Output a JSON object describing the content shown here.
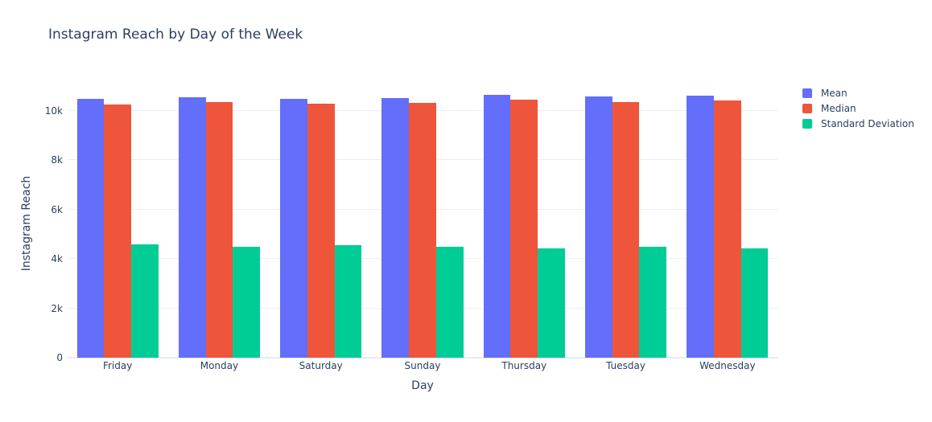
{
  "title": "Instagram Reach by Day of the Week",
  "colors": {
    "background": "#ffffff",
    "grid": "#ebf0f8",
    "zero_line": "#e5ecf6",
    "text": "#2a3f5f",
    "mean": "#636EFA",
    "median": "#EF553B",
    "std_dev": "#00CC96"
  },
  "chart_data": {
    "type": "bar",
    "title": "Instagram Reach by Day of the Week",
    "xlabel": "Day",
    "ylabel": "Instagram Reach",
    "categories": [
      "Friday",
      "Monday",
      "Saturday",
      "Sunday",
      "Thursday",
      "Tuesday",
      "Wednesday"
    ],
    "series": [
      {
        "name": "Mean",
        "color": "#636EFA",
        "values": [
          10500,
          10550,
          10490,
          10520,
          10650,
          10590,
          10620
        ]
      },
      {
        "name": "Median",
        "color": "#EF553B",
        "values": [
          10270,
          10360,
          10290,
          10310,
          10450,
          10360,
          10420
        ]
      },
      {
        "name": "Standard Deviation",
        "color": "#00CC96",
        "values": [
          4580,
          4480,
          4550,
          4510,
          4440,
          4480,
          4440
        ]
      }
    ],
    "ylim": [
      0,
      11560
    ],
    "yticks": [
      0,
      2000,
      4000,
      6000,
      8000,
      10000
    ],
    "ytick_labels": [
      "0",
      "2k",
      "4k",
      "6k",
      "8k",
      "10k"
    ],
    "grid": true,
    "legend_position": "right",
    "bar_mode": "group"
  }
}
